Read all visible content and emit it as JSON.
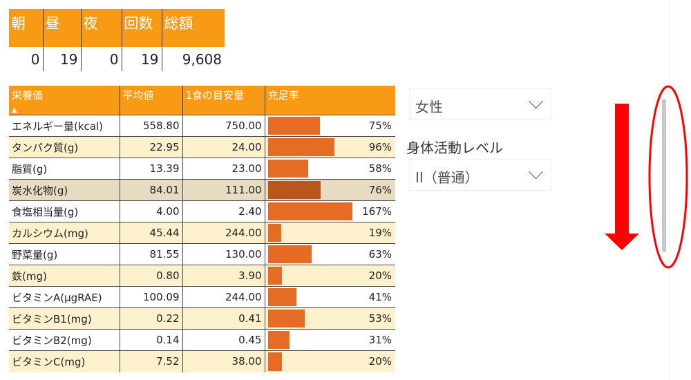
{
  "summary": {
    "headers": [
      "朝",
      "昼",
      "夜",
      "回数",
      "総額"
    ],
    "values": [
      "0",
      "19",
      "0",
      "19",
      "9,608"
    ]
  },
  "nutrition": {
    "headers": [
      "栄養価",
      "平均値",
      "1食の目安量",
      "充足率"
    ],
    "sort_indicator": "▲",
    "rows": [
      {
        "name": "エネルギー量(kcal)",
        "avg": "558.80",
        "target": "750.00",
        "rate": "75%",
        "rate_value": 75
      },
      {
        "name": "タンパク質(g)",
        "avg": "22.95",
        "target": "24.00",
        "rate": "96%",
        "rate_value": 96
      },
      {
        "name": "脂質(g)",
        "avg": "13.39",
        "target": "23.00",
        "rate": "58%",
        "rate_value": 58
      },
      {
        "name": "炭水化物(g)",
        "avg": "84.01",
        "target": "111.00",
        "rate": "76%",
        "rate_value": 76
      },
      {
        "name": "食塩相当量(g)",
        "avg": "4.00",
        "target": "2.40",
        "rate": "167%",
        "rate_value": 167
      },
      {
        "name": "カルシウム(mg)",
        "avg": "45.44",
        "target": "244.00",
        "rate": "19%",
        "rate_value": 19
      },
      {
        "name": "野菜量(g)",
        "avg": "81.55",
        "target": "130.00",
        "rate": "63%",
        "rate_value": 63
      },
      {
        "name": "鉄(mg)",
        "avg": "0.80",
        "target": "3.90",
        "rate": "20%",
        "rate_value": 20
      },
      {
        "name": "ビタミンA(μgRAE)",
        "avg": "100.09",
        "target": "244.00",
        "rate": "41%",
        "rate_value": 41
      },
      {
        "name": "ビタミンB1(mg)",
        "avg": "0.22",
        "target": "0.41",
        "rate": "53%",
        "rate_value": 53
      },
      {
        "name": "ビタミンB2(mg)",
        "avg": "0.14",
        "target": "0.45",
        "rate": "31%",
        "rate_value": 31
      },
      {
        "name": "ビタミンC(mg)",
        "avg": "7.52",
        "target": "38.00",
        "rate": "20%",
        "rate_value": 20
      }
    ]
  },
  "filters": {
    "gender": "女性",
    "activity_label": "身体活動レベル",
    "activity": "II（普通）"
  },
  "colors": {
    "header": "#f99a14",
    "bar": "#e46c25",
    "annotation": "#ff0000"
  }
}
